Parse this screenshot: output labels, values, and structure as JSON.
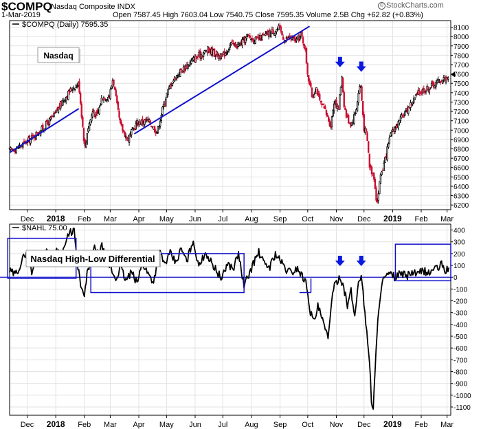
{
  "header": {
    "symbol": "$COMPQ",
    "name": "Nasdaq Composite INDX",
    "date": "1-Mar-2019",
    "quote": "Open 7587.45   High 7603.04   Low 7540.75   Close 7595.35   Volume 2.5B   Chg +62.82 (+0.83%)",
    "credit_symbol": "©",
    "credit": "StockCharts.com"
  },
  "chart_data": [
    {
      "type": "line",
      "style": "candlestick",
      "legend": "$COMPQ (Daily) 7595.35",
      "annotation": "Nasdaq",
      "ylim": [
        6150,
        8170
      ],
      "y_ticks": [
        6200,
        6300,
        6400,
        6500,
        6600,
        6700,
        6800,
        6900,
        7000,
        7100,
        7200,
        7300,
        7400,
        7500,
        7600,
        7700,
        7800,
        7900,
        8000,
        8100
      ],
      "x_tick_labels": [
        "Dec",
        "2018",
        "Feb",
        "Mar",
        "Apr",
        "May",
        "Jun",
        "Jul",
        "Aug",
        "Sep",
        "Oct",
        "Nov",
        "Dec",
        "2019",
        "Feb",
        "Mar"
      ],
      "x_tick_days": [
        19,
        50,
        81,
        109,
        140,
        170,
        201,
        231,
        262,
        293,
        323,
        354,
        384,
        415,
        446,
        474
      ],
      "x_range_days": [
        0,
        478
      ],
      "series": [
        {
          "x_days": [
            0,
            10,
            22,
            35,
            48,
            58,
            68,
            75,
            80,
            82,
            84,
            90,
            95,
            100,
            108,
            112,
            116,
            120,
            128,
            138,
            150,
            160,
            165,
            170,
            176,
            185,
            200,
            215,
            230,
            240,
            248,
            258,
            268,
            280,
            292,
            298,
            303,
            310,
            316,
            320,
            323,
            328,
            332,
            336,
            342,
            348,
            352,
            356,
            360,
            362,
            365,
            370,
            375,
            380,
            384,
            387,
            390,
            395,
            398,
            402,
            406,
            409,
            414,
            420,
            428,
            436,
            444,
            452,
            460,
            466,
            474,
            476
          ],
          "close": [
            6780,
            6820,
            6900,
            7010,
            7150,
            7320,
            7450,
            7500,
            6950,
            6790,
            6990,
            7200,
            7150,
            7350,
            7360,
            7560,
            7280,
            7050,
            6900,
            7080,
            7100,
            6980,
            7200,
            7380,
            7520,
            7630,
            7760,
            7860,
            7780,
            7920,
            7900,
            8000,
            7960,
            8030,
            8090,
            7960,
            7990,
            7950,
            8020,
            7880,
            7600,
            7350,
            7470,
            7300,
            7200,
            7050,
            7340,
            7200,
            7590,
            7300,
            7140,
            7060,
            7200,
            7520,
            7020,
            6950,
            6620,
            6500,
            6200,
            6530,
            6640,
            6780,
            6990,
            7050,
            7180,
            7300,
            7410,
            7440,
            7490,
            7530,
            7560,
            7595
          ]
        }
      ],
      "trendlines": [
        {
          "x_days": [
            0,
            75
          ],
          "y": [
            6760,
            7230
          ]
        },
        {
          "x_days": [
            135,
            325
          ],
          "y": [
            6960,
            8110
          ]
        }
      ],
      "arrows": [
        {
          "x_day": 358,
          "y": 7680
        },
        {
          "x_day": 381,
          "y": 7630
        }
      ]
    },
    {
      "type": "line",
      "legend": "$NAHL 75.00",
      "annotation": "Nasdaq High-Low Differential",
      "ylim": [
        -1170,
        450
      ],
      "y_ticks": [
        400,
        300,
        200,
        100,
        0,
        -100,
        -200,
        -300,
        -400,
        -500,
        -600,
        -700,
        -800,
        -900,
        -1000,
        -1100
      ],
      "x_tick_labels": [
        "Dec",
        "2018",
        "Feb",
        "Mar",
        "Apr",
        "May",
        "Jun",
        "Jul",
        "Aug",
        "Sep",
        "Oct",
        "Nov",
        "Dec",
        "2019",
        "Feb",
        "Mar"
      ],
      "x_tick_days": [
        19,
        50,
        81,
        109,
        140,
        170,
        201,
        231,
        262,
        293,
        323,
        354,
        384,
        415,
        446,
        474
      ],
      "x_range_days": [
        0,
        478
      ],
      "reference_line": 0,
      "series": [
        {
          "x_days": [
            0,
            6,
            12,
            18,
            24,
            30,
            36,
            40,
            45,
            50,
            56,
            62,
            66,
            70,
            72,
            75,
            78,
            81,
            84,
            88,
            92,
            96,
            100,
            105,
            110,
            115,
            120,
            126,
            132,
            138,
            144,
            150,
            156,
            162,
            168,
            174,
            180,
            186,
            192,
            198,
            202,
            206,
            212,
            218,
            224,
            230,
            236,
            242,
            248,
            254,
            260,
            266,
            270,
            276,
            282,
            288,
            294,
            300,
            306,
            312,
            316,
            320,
            323,
            326,
            330,
            334,
            338,
            342,
            345,
            348,
            352,
            355,
            358,
            362,
            366,
            370,
            374,
            378,
            381,
            384,
            386,
            388,
            390,
            392,
            394,
            396,
            398,
            400,
            402,
            404,
            406,
            409,
            412,
            418,
            424,
            430,
            436,
            442,
            448,
            454,
            460,
            464,
            468,
            472,
            476
          ],
          "values": [
            50,
            20,
            110,
            220,
            30,
            210,
            150,
            230,
            130,
            250,
            180,
            320,
            380,
            400,
            200,
            40,
            -120,
            -160,
            20,
            160,
            240,
            190,
            260,
            140,
            70,
            -20,
            90,
            -30,
            40,
            -50,
            120,
            30,
            -40,
            220,
            110,
            200,
            120,
            240,
            130,
            300,
            200,
            90,
            220,
            130,
            60,
            -20,
            120,
            70,
            200,
            -80,
            40,
            150,
            210,
            110,
            90,
            200,
            130,
            60,
            40,
            80,
            20,
            -20,
            -120,
            -300,
            -380,
            -250,
            -340,
            -450,
            -520,
            -250,
            -80,
            -30,
            10,
            -80,
            -240,
            -120,
            -340,
            -30,
            20,
            -220,
            -380,
            -580,
            -700,
            -1040,
            -1120,
            -800,
            -500,
            -250,
            -120,
            -40,
            -10,
            10,
            20,
            0,
            30,
            10,
            40,
            20,
            60,
            30,
            80,
            70,
            110,
            60,
            75
          ]
        }
      ],
      "boxes": [
        {
          "x_days": [
            -2,
            72
          ],
          "y": [
            -10,
            330
          ]
        },
        {
          "x_days": [
            88,
            254
          ],
          "y": [
            -130,
            200
          ]
        },
        {
          "x_days": [
            323,
            325
          ],
          "y": [
            -140,
            -130
          ]
        },
        {
          "x_days": [
            418,
            478
          ],
          "y": [
            -30,
            280
          ]
        }
      ],
      "arrows": [
        {
          "x_day": 358,
          "y": 100
        },
        {
          "x_day": 381,
          "y": 100
        }
      ]
    }
  ]
}
